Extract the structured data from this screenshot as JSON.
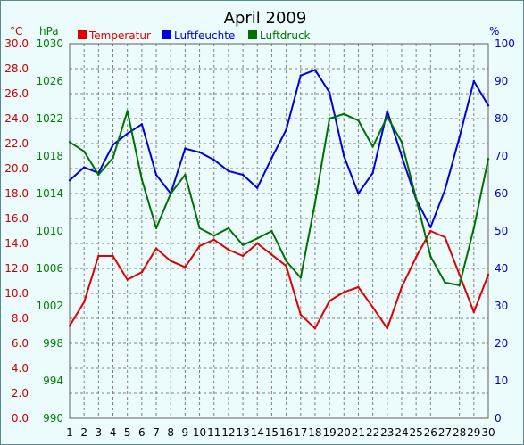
{
  "chart_data": {
    "type": "line",
    "title": "April 2009",
    "x": [
      1,
      2,
      3,
      4,
      5,
      6,
      7,
      8,
      9,
      10,
      11,
      12,
      13,
      14,
      15,
      16,
      17,
      18,
      19,
      20,
      21,
      22,
      23,
      24,
      25,
      26,
      27,
      28,
      29,
      30
    ],
    "axes": {
      "temperature": {
        "unit": "°C",
        "ylim": [
          0,
          30
        ],
        "ticks": [
          "0.0",
          "2.0",
          "4.0",
          "6.0",
          "8.0",
          "10.0",
          "12.0",
          "14.0",
          "16.0",
          "18.0",
          "20.0",
          "22.0",
          "24.0",
          "26.0",
          "28.0",
          "30.0"
        ],
        "color": "#cc0000"
      },
      "pressure": {
        "unit": "hPa",
        "ylim": [
          990,
          1030
        ],
        "ticks": [
          "990",
          "994",
          "998",
          "1002",
          "1006",
          "1010",
          "1014",
          "1018",
          "1022",
          "1026",
          "1030"
        ],
        "color": "#008000"
      },
      "humidity": {
        "unit": "%",
        "ylim": [
          0,
          100
        ],
        "ticks": [
          "0",
          "10",
          "20",
          "30",
          "40",
          "50",
          "60",
          "70",
          "80",
          "90",
          "100"
        ],
        "color": "#0000cc"
      }
    },
    "series": [
      {
        "name": "Temperatur",
        "axis": "temperature",
        "color": "#e00000",
        "values": [
          7.4,
          9.3,
          13.0,
          13.0,
          11.1,
          11.7,
          13.6,
          12.6,
          12.1,
          13.8,
          14.3,
          13.5,
          13.0,
          14.0,
          13.1,
          12.2,
          8.3,
          7.2,
          9.4,
          10.1,
          10.5,
          8.9,
          7.2,
          10.5,
          12.9,
          15.0,
          14.5,
          11.5,
          8.5,
          11.5
        ]
      },
      {
        "name": "Luftfeuchte",
        "axis": "humidity",
        "color": "#0000dd",
        "values": [
          63.5,
          67.0,
          65.5,
          73.0,
          76.0,
          78.5,
          65.0,
          60.0,
          72.0,
          71.0,
          69.0,
          66.0,
          65.0,
          61.5,
          69.5,
          77.0,
          91.5,
          93.0,
          87.0,
          70.0,
          60.0,
          65.5,
          82.0,
          70.0,
          58.5,
          51.0,
          61.0,
          75.0,
          90.0,
          83.5
        ]
      },
      {
        "name": "Luftdruck",
        "axis": "pressure",
        "color": "#007000",
        "values": [
          1019.5,
          1018.5,
          1016.0,
          1017.8,
          1022.8,
          1015.5,
          1010.3,
          1014.0,
          1016.0,
          1010.3,
          1009.5,
          1010.3,
          1008.5,
          1009.2,
          1010.0,
          1006.8,
          1005.0,
          1013.0,
          1022.0,
          1022.5,
          1021.8,
          1019.0,
          1022.2,
          1019.5,
          1013.5,
          1007.3,
          1004.5,
          1004.2,
          1010.3,
          1017.7
        ]
      }
    ],
    "legend": {
      "placement": "top",
      "entries": [
        {
          "label": "Temperatur",
          "color": "#e00000"
        },
        {
          "label": "Luftfeuchte",
          "color": "#0000dd"
        },
        {
          "label": "Luftdruck",
          "color": "#007000"
        }
      ]
    },
    "grid": true
  }
}
